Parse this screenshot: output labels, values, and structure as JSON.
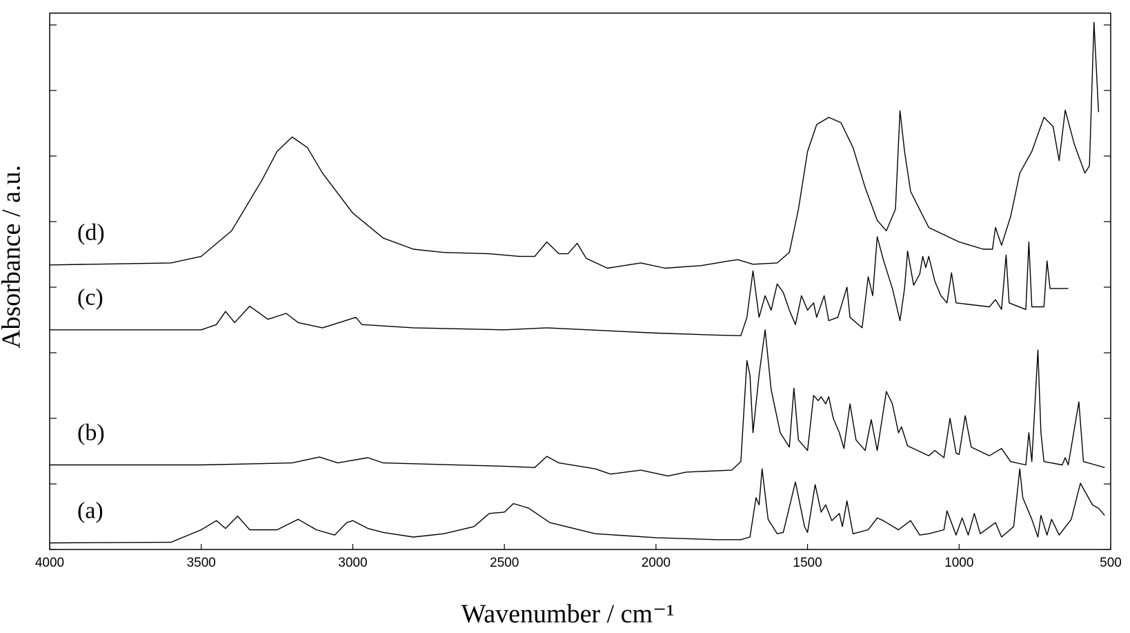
{
  "chart_data": {
    "type": "line",
    "x_label": "Wavenumber / cm⁻¹",
    "y_label": "Absorbance / a.u.",
    "xlim": [
      4000,
      500
    ],
    "xticks": [
      4000,
      3500,
      3000,
      2500,
      2000,
      1500,
      1000,
      500
    ],
    "ylim": [
      0,
      8.18
    ],
    "yticks": [
      0,
      1,
      2,
      3,
      4,
      5,
      6,
      7,
      8
    ],
    "series": [
      {
        "name": "(a)",
        "color": "#000000",
        "x": [
          4000,
          3600,
          3500,
          3450,
          3420,
          3380,
          3340,
          3250,
          3180,
          3120,
          3060,
          3020,
          3000,
          2950,
          2900,
          2800,
          2700,
          2600,
          2550,
          2500,
          2470,
          2420,
          2350,
          2200,
          2000,
          1800,
          1720,
          1690,
          1670,
          1660,
          1650,
          1630,
          1600,
          1580,
          1540,
          1510,
          1500,
          1475,
          1455,
          1440,
          1420,
          1395,
          1385,
          1370,
          1350,
          1300,
          1270,
          1250,
          1200,
          1160,
          1130,
          1100,
          1050,
          1040,
          1010,
          990,
          970,
          950,
          930,
          880,
          860,
          820,
          800,
          790,
          760,
          740,
          730,
          710,
          695,
          670,
          630,
          600,
          560,
          540,
          520
        ],
        "values": [
          0.1,
          0.11,
          0.3,
          0.44,
          0.32,
          0.51,
          0.3,
          0.3,
          0.46,
          0.3,
          0.22,
          0.41,
          0.44,
          0.32,
          0.26,
          0.19,
          0.24,
          0.35,
          0.55,
          0.57,
          0.7,
          0.63,
          0.41,
          0.24,
          0.18,
          0.15,
          0.15,
          0.19,
          0.79,
          0.68,
          1.23,
          0.46,
          0.24,
          0.26,
          1.03,
          0.35,
          0.26,
          0.99,
          0.57,
          0.68,
          0.44,
          0.55,
          0.35,
          0.74,
          0.24,
          0.3,
          0.48,
          0.44,
          0.3,
          0.44,
          0.22,
          0.24,
          0.3,
          0.59,
          0.22,
          0.48,
          0.22,
          0.55,
          0.24,
          0.41,
          0.19,
          0.35,
          1.23,
          0.79,
          0.46,
          0.19,
          0.52,
          0.22,
          0.46,
          0.22,
          0.46,
          1.01,
          0.68,
          0.63,
          0.52
        ]
      },
      {
        "name": "(b)",
        "color": "#000000",
        "x": [
          4000,
          3500,
          3200,
          3110,
          3050,
          2950,
          2900,
          2500,
          2400,
          2360,
          2320,
          2200,
          2150,
          2050,
          1960,
          1900,
          1750,
          1720,
          1700,
          1690,
          1680,
          1660,
          1640,
          1620,
          1600,
          1590,
          1560,
          1545,
          1530,
          1500,
          1480,
          1465,
          1455,
          1440,
          1430,
          1415,
          1395,
          1380,
          1360,
          1340,
          1310,
          1290,
          1270,
          1240,
          1220,
          1200,
          1190,
          1170,
          1100,
          1080,
          1050,
          1030,
          1010,
          1000,
          980,
          960,
          900,
          860,
          830,
          780,
          770,
          760,
          740,
          730,
          720,
          660,
          650,
          640,
          605,
          590,
          550,
          520
        ],
        "values": [
          1.29,
          1.29,
          1.32,
          1.41,
          1.32,
          1.4,
          1.32,
          1.27,
          1.25,
          1.42,
          1.32,
          1.23,
          1.15,
          1.21,
          1.12,
          1.18,
          1.21,
          1.34,
          2.88,
          2.66,
          1.78,
          2.66,
          3.35,
          2.44,
          2.0,
          1.78,
          1.56,
          2.46,
          1.67,
          1.51,
          2.35,
          2.27,
          2.33,
          2.22,
          2.33,
          2.0,
          1.78,
          1.54,
          2.22,
          1.67,
          1.51,
          1.98,
          1.51,
          2.41,
          2.22,
          1.78,
          1.87,
          1.58,
          1.43,
          1.51,
          1.4,
          2.0,
          1.47,
          1.45,
          2.04,
          1.56,
          1.43,
          1.54,
          1.34,
          1.29,
          1.78,
          1.34,
          3.04,
          1.78,
          1.34,
          1.29,
          1.4,
          1.29,
          2.25,
          1.34,
          1.29,
          1.25
        ]
      },
      {
        "name": "(c)",
        "color": "#000000",
        "x": [
          4000,
          3500,
          3450,
          3420,
          3390,
          3340,
          3280,
          3220,
          3180,
          3100,
          2990,
          2970,
          2800,
          2500,
          2360,
          2000,
          1800,
          1720,
          1700,
          1680,
          1660,
          1640,
          1620,
          1600,
          1580,
          1560,
          1540,
          1520,
          1500,
          1480,
          1470,
          1445,
          1430,
          1400,
          1370,
          1360,
          1320,
          1300,
          1285,
          1270,
          1250,
          1220,
          1195,
          1180,
          1170,
          1150,
          1130,
          1120,
          1110,
          1100,
          1080,
          1060,
          1040,
          1025,
          1010,
          900,
          880,
          860,
          845,
          835,
          780,
          770,
          760,
          720,
          710,
          700,
          640
        ],
        "values": [
          3.35,
          3.35,
          3.43,
          3.63,
          3.46,
          3.71,
          3.51,
          3.6,
          3.46,
          3.38,
          3.54,
          3.43,
          3.38,
          3.35,
          3.38,
          3.3,
          3.27,
          3.26,
          3.54,
          4.25,
          3.54,
          3.87,
          3.65,
          4.05,
          3.92,
          3.65,
          3.43,
          3.87,
          3.65,
          3.76,
          3.54,
          3.87,
          3.49,
          3.54,
          4.0,
          3.54,
          3.38,
          4.16,
          3.87,
          4.77,
          4.42,
          3.98,
          3.49,
          3.98,
          4.55,
          4.03,
          4.2,
          4.47,
          4.3,
          4.47,
          4.09,
          3.87,
          3.76,
          4.22,
          3.76,
          3.7,
          3.81,
          3.66,
          4.49,
          3.76,
          3.66,
          4.69,
          3.7,
          3.7,
          4.4,
          3.98,
          3.98
        ]
      },
      {
        "name": "(d)",
        "color": "#000000",
        "x": [
          4000,
          3600,
          3500,
          3400,
          3300,
          3250,
          3200,
          3150,
          3100,
          3000,
          2900,
          2800,
          2700,
          2550,
          2450,
          2400,
          2360,
          2320,
          2290,
          2260,
          2230,
          2160,
          2050,
          1970,
          1850,
          1760,
          1730,
          1680,
          1600,
          1560,
          1530,
          1500,
          1470,
          1430,
          1390,
          1350,
          1310,
          1270,
          1240,
          1210,
          1195,
          1180,
          1160,
          1100,
          1000,
          920,
          890,
          880,
          860,
          830,
          800,
          760,
          720,
          690,
          670,
          650,
          620,
          585,
          570,
          555,
          540
        ],
        "values": [
          4.34,
          4.37,
          4.47,
          4.86,
          5.63,
          6.07,
          6.29,
          6.13,
          5.74,
          5.13,
          4.75,
          4.58,
          4.53,
          4.51,
          4.47,
          4.47,
          4.69,
          4.51,
          4.51,
          4.67,
          4.44,
          4.29,
          4.37,
          4.29,
          4.33,
          4.4,
          4.42,
          4.35,
          4.37,
          4.53,
          5.19,
          6.07,
          6.48,
          6.59,
          6.51,
          6.13,
          5.52,
          5.02,
          4.86,
          5.19,
          6.69,
          6.07,
          5.46,
          4.91,
          4.69,
          4.58,
          4.58,
          4.91,
          4.64,
          5.08,
          5.74,
          6.07,
          6.59,
          6.45,
          5.93,
          6.7,
          6.18,
          5.74,
          5.85,
          8.04,
          6.67
        ]
      }
    ]
  }
}
